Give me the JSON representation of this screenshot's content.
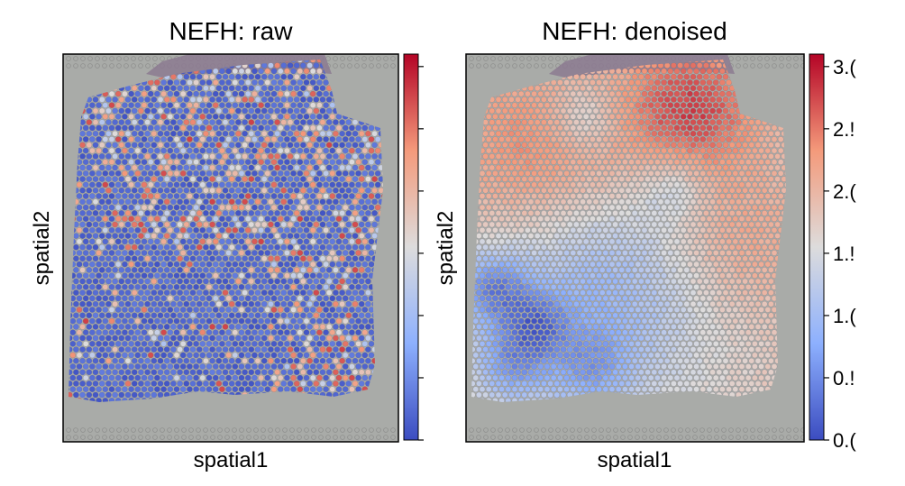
{
  "chart_data": [
    {
      "type": "heatmap",
      "subtype": "spatial-spot-map",
      "title": "NEFH: raw",
      "xlabel": "spatial1",
      "ylabel": "spatial2",
      "colormap": "coolwarm",
      "colorbar": {
        "ticks": [],
        "tick_labels": []
      },
      "background": "tissue image",
      "grid": false
    },
    {
      "type": "heatmap",
      "subtype": "spatial-spot-map",
      "title": "NEFH: denoised",
      "xlabel": "spatial1",
      "ylabel": "spatial2",
      "colormap": "coolwarm",
      "colorbar": {
        "range": [
          0.0,
          3.1
        ],
        "ticks": [
          0.0,
          0.5,
          1.0,
          1.5,
          2.0,
          2.5,
          3.0
        ],
        "tick_labels": [
          "0.(",
          "0.!",
          "1.(",
          "1.!",
          "2.(",
          "2.!",
          "3.("
        ]
      },
      "background": "tissue image",
      "grid": false
    }
  ],
  "colors": {
    "low": "#3b4cc0",
    "mid": "#dddddd",
    "high": "#b40426",
    "slide_background": "#a9aba8",
    "tissue_top": "#8c7a90"
  }
}
